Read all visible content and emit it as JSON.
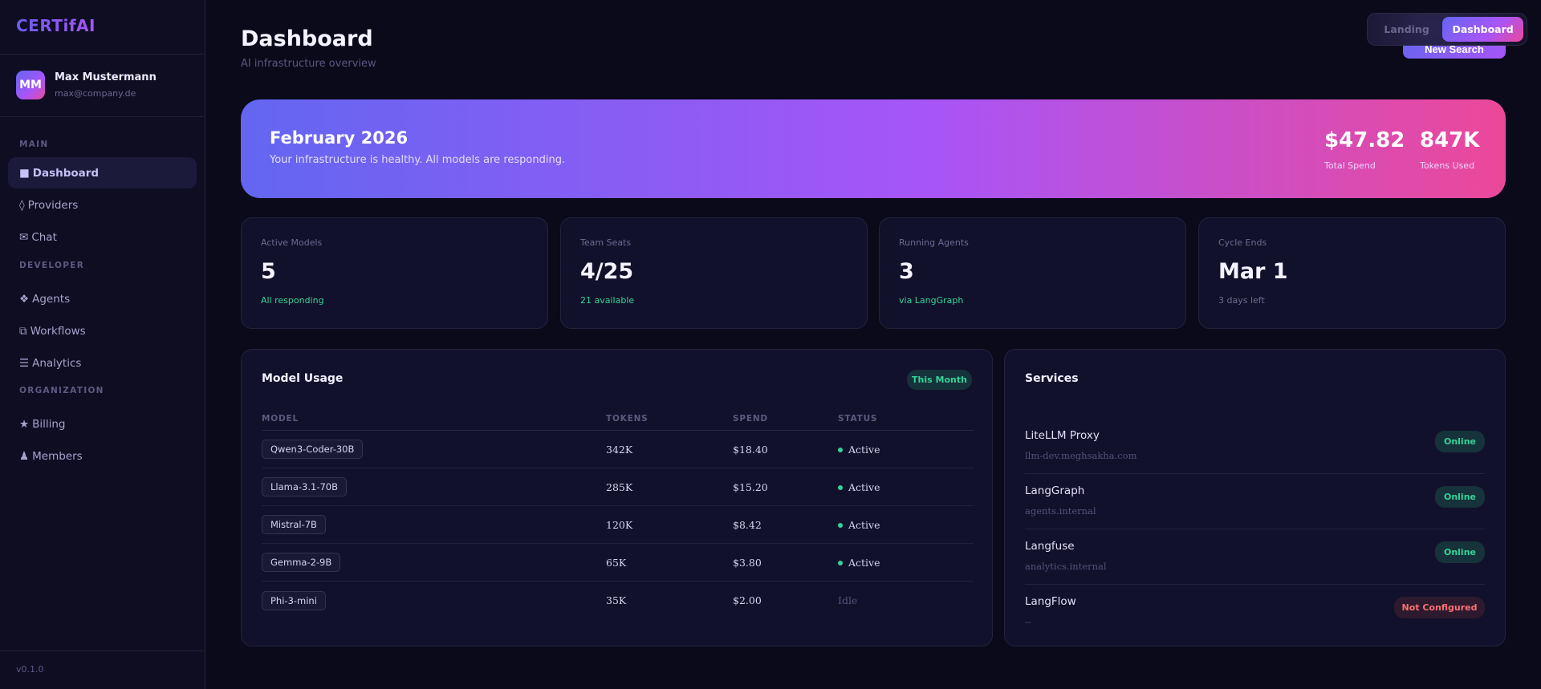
{
  "brand": {
    "logo": "CERTifAI",
    "version": "v0.1.0"
  },
  "user": {
    "initials": "MM",
    "name": "Max Mustermann",
    "email": "max@company.de"
  },
  "sidebar": {
    "sections": [
      {
        "label": "MAIN",
        "items": [
          {
            "icon": "■",
            "label": "Dashboard",
            "active": true
          },
          {
            "icon": "◊",
            "label": "Providers"
          },
          {
            "icon": "✉",
            "label": "Chat"
          }
        ]
      },
      {
        "label": "DEVELOPER",
        "items": [
          {
            "icon": "❖",
            "label": "Agents"
          },
          {
            "icon": "⧉",
            "label": "Workflows"
          },
          {
            "icon": "☰",
            "label": "Analytics"
          }
        ]
      },
      {
        "label": "ORGANIZATION",
        "items": [
          {
            "icon": "★",
            "label": "Billing"
          },
          {
            "icon": "♟",
            "label": "Members"
          }
        ]
      }
    ]
  },
  "header": {
    "title": "Dashboard",
    "subtitle": "AI infrastructure overview",
    "new_search": "New Search"
  },
  "view_toggle": {
    "options": [
      "Landing",
      "Dashboard"
    ],
    "selected": "Dashboard"
  },
  "hero": {
    "title": "February 2026",
    "message": "Your infrastructure is healthy. All models are responding.",
    "stats": [
      {
        "value": "$47.82",
        "label": "Total Spend"
      },
      {
        "value": "847K",
        "label": "Tokens Used"
      }
    ]
  },
  "cards": [
    {
      "label": "Active Models",
      "value": "5",
      "sub": "All responding",
      "sub_color": "#34d399"
    },
    {
      "label": "Team Seats",
      "value": "4/25",
      "sub": "21 available",
      "sub_color": "#34d399"
    },
    {
      "label": "Running Agents",
      "value": "3",
      "sub": "via LangGraph",
      "sub_color": "#34d399"
    },
    {
      "label": "Cycle Ends",
      "value": "Mar 1",
      "sub": "3 days left",
      "sub_color": "#6d6a93"
    }
  ],
  "model_usage": {
    "title": "Model Usage",
    "badge": "This Month",
    "columns": [
      "MODEL",
      "TOKENS",
      "SPEND",
      "STATUS"
    ],
    "rows": [
      {
        "model": "Qwen3-Coder-30B",
        "tokens": "342K",
        "spend": "$18.40",
        "status": "Active"
      },
      {
        "model": "Llama-3.1-70B",
        "tokens": "285K",
        "spend": "$15.20",
        "status": "Active"
      },
      {
        "model": "Mistral-7B",
        "tokens": "120K",
        "spend": "$8.42",
        "status": "Active"
      },
      {
        "model": "Gemma-2-9B",
        "tokens": "65K",
        "spend": "$3.80",
        "status": "Active"
      },
      {
        "model": "Phi-3-mini",
        "tokens": "35K",
        "spend": "$2.00",
        "status": "Idle"
      }
    ]
  },
  "services": {
    "title": "Services",
    "items": [
      {
        "name": "LiteLLM Proxy",
        "host": "llm-dev.meghsakha.com",
        "status": "Online"
      },
      {
        "name": "LangGraph",
        "host": "agents.internal",
        "status": "Online"
      },
      {
        "name": "Langfuse",
        "host": "analytics.internal",
        "status": "Online"
      },
      {
        "name": "LangFlow",
        "host": "--",
        "status": "Not Configured"
      }
    ]
  },
  "colors": {
    "accent": "#6366f1",
    "accent2": "#a855f7",
    "pink": "#ec4899",
    "online": "#34d399",
    "error": "#f87171",
    "bg": "#0b0a1a"
  }
}
